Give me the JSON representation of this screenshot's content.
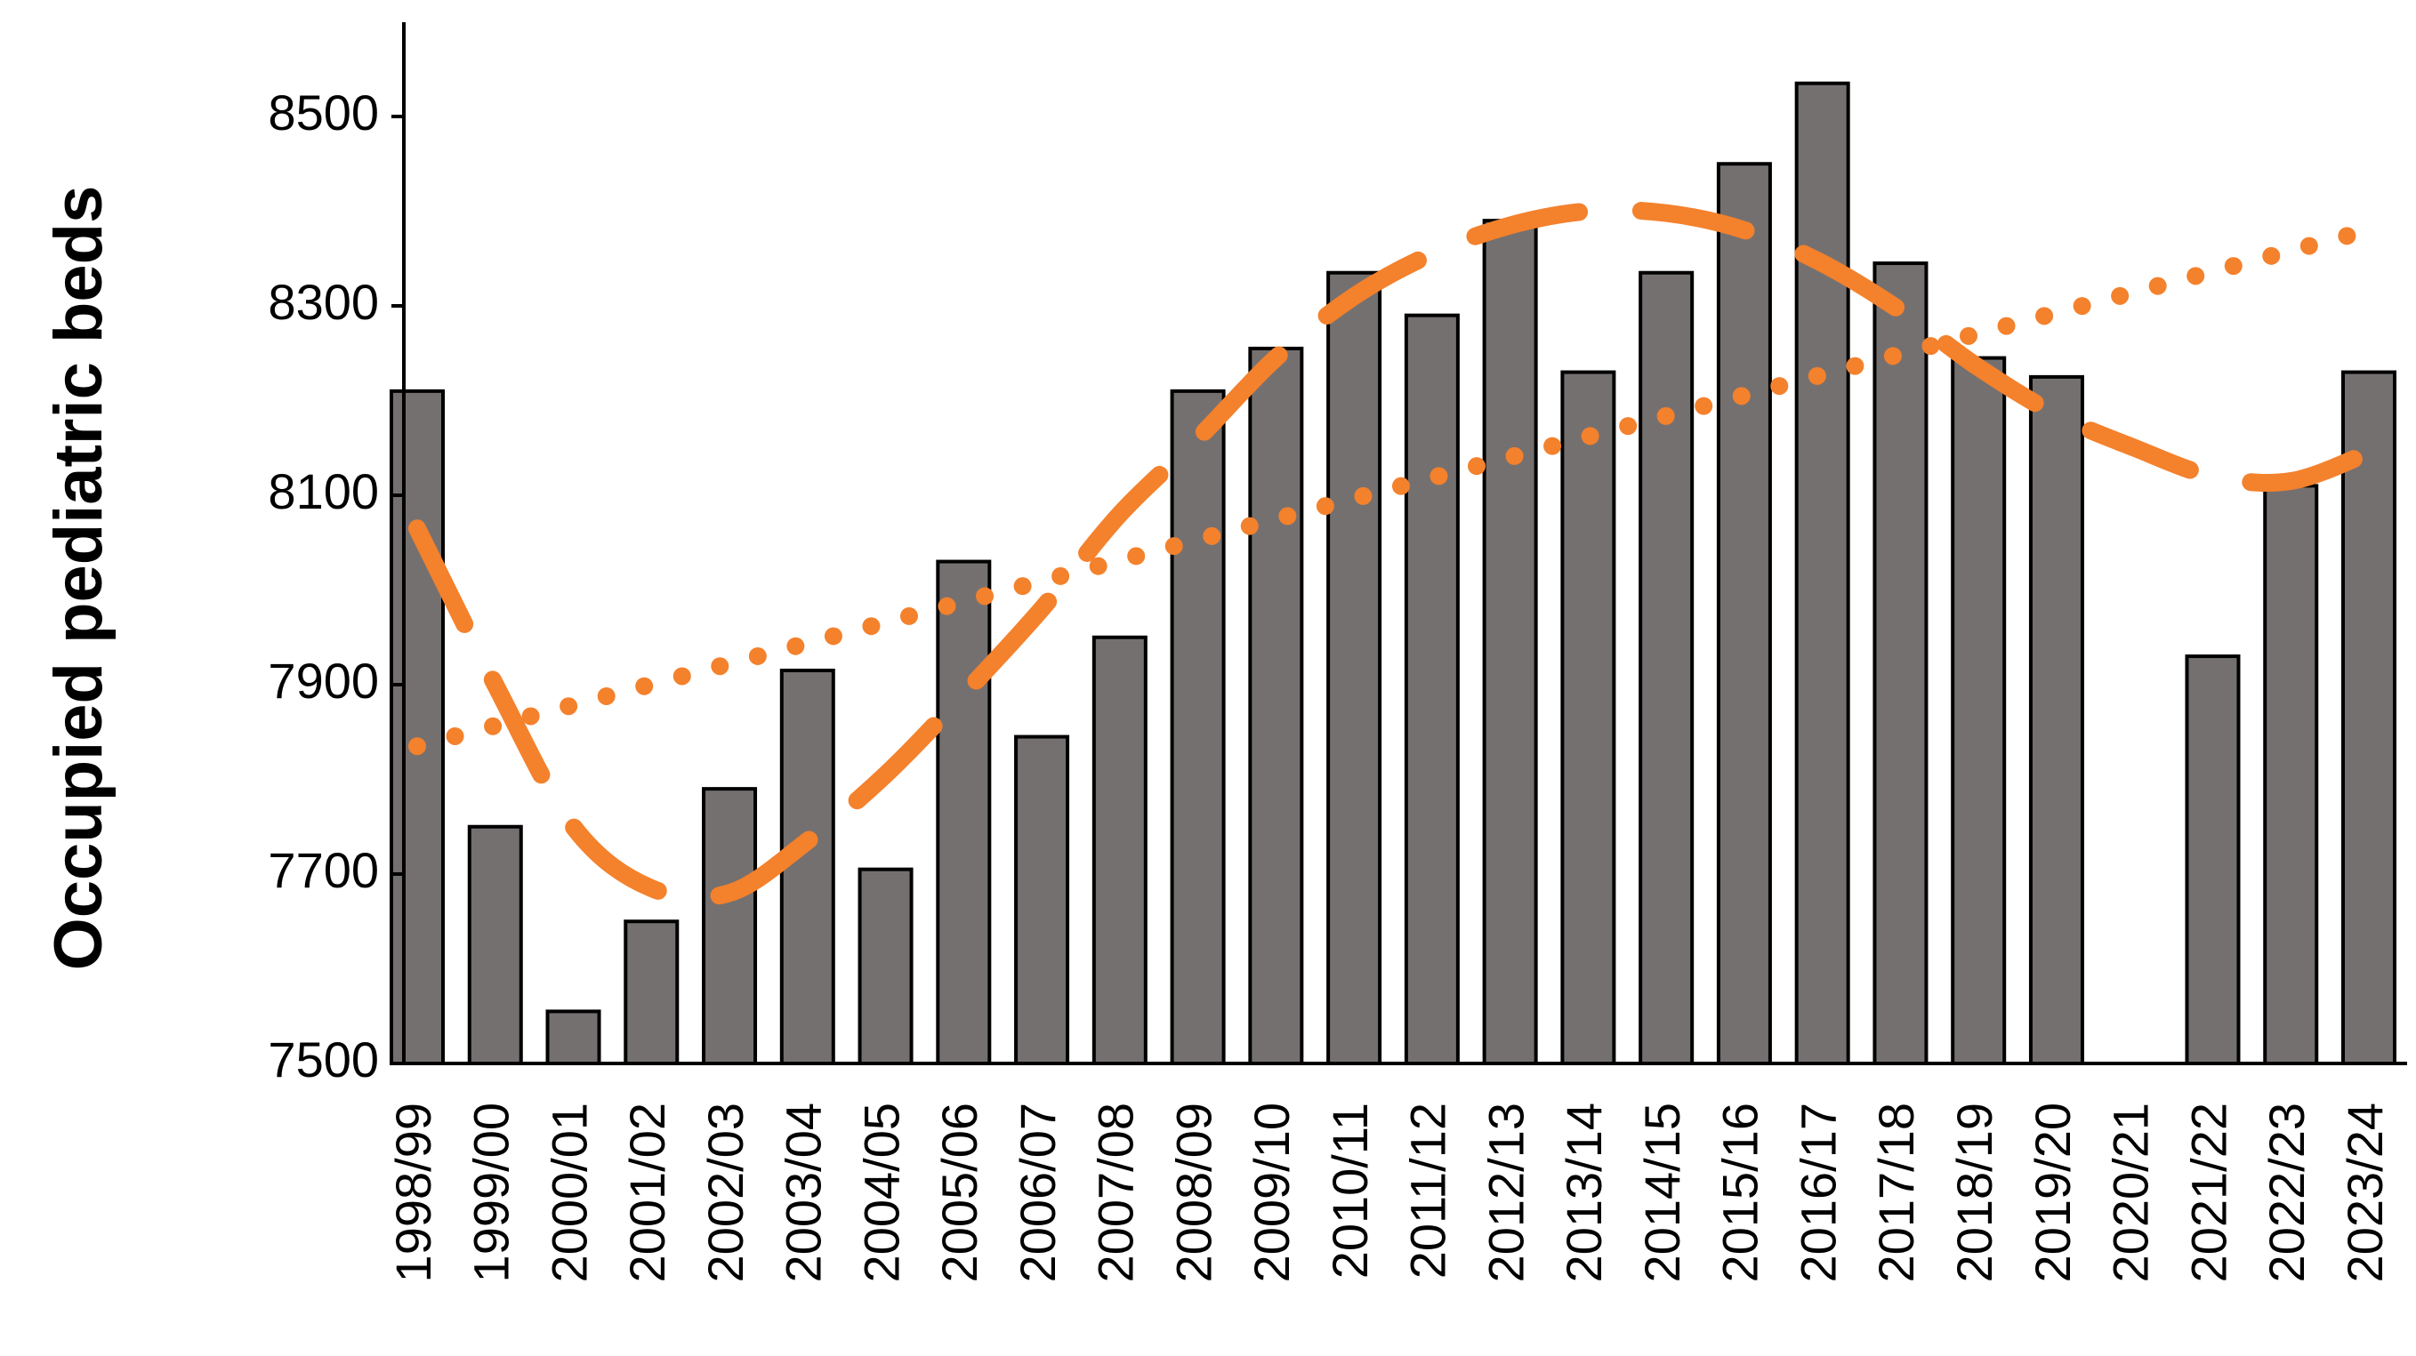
{
  "chart_data": {
    "type": "bar",
    "ylabel": "Occupied pediatric beds",
    "xlabel": "",
    "title": "",
    "ylim": [
      7500,
      8600
    ],
    "yticks": [
      7500,
      7700,
      7900,
      8100,
      8300,
      8500
    ],
    "grid": false,
    "legend": "none",
    "categories": [
      "1998/99",
      "1999/00",
      "2000/01",
      "2001/02",
      "2002/03",
      "2003/04",
      "2004/05",
      "2005/06",
      "2006/07",
      "2007/08",
      "2008/09",
      "2009/10",
      "2010/11",
      "2011/12",
      "2012/13",
      "2013/14",
      "2014/15",
      "2015/16",
      "2016/17",
      "2017/18",
      "2018/19",
      "2019/20",
      "2020/21",
      "2021/22",
      "2022/23",
      "2023/24"
    ],
    "values": [
      8210,
      7750,
      7555,
      7650,
      7790,
      7915,
      7705,
      8030,
      7845,
      7950,
      8210,
      8255,
      8335,
      8290,
      8390,
      8230,
      8335,
      8450,
      8535,
      8345,
      8245,
      8225,
      null,
      7930,
      8110,
      8230
    ],
    "bar_color": "#757070",
    "bar_edge_color": "#000000",
    "trendlines": [
      {
        "kind": "linear",
        "style": "dotted",
        "color": "#f4812c",
        "points": [
          {
            "x": "1998/99",
            "y": 7835
          },
          {
            "x": "2023/24",
            "y": 8380
          }
        ]
      },
      {
        "kind": "moving-average",
        "style": "dashed",
        "color": "#f4812c",
        "points": [
          {
            "x": "1998/99",
            "y": 8065
          },
          {
            "x": "1999/00",
            "y": 7900
          },
          {
            "x": "2000/01",
            "y": 7750
          },
          {
            "x": "2001/02",
            "y": 7685
          },
          {
            "x": "2002/03",
            "y": 7680
          },
          {
            "x": "2003/04",
            "y": 7735
          },
          {
            "x": "2004/05",
            "y": 7805
          },
          {
            "x": "2005/06",
            "y": 7890
          },
          {
            "x": "2006/07",
            "y": 7980
          },
          {
            "x": "2007/08",
            "y": 8080
          },
          {
            "x": "2008/09",
            "y": 8160
          },
          {
            "x": "2009/10",
            "y": 8245
          },
          {
            "x": "2010/11",
            "y": 8310
          },
          {
            "x": "2011/12",
            "y": 8355
          },
          {
            "x": "2012/13",
            "y": 8385
          },
          {
            "x": "2013/14",
            "y": 8400
          },
          {
            "x": "2014/15",
            "y": 8398
          },
          {
            "x": "2015/16",
            "y": 8380
          },
          {
            "x": "2016/17",
            "y": 8345
          },
          {
            "x": "2017/18",
            "y": 8295
          },
          {
            "x": "2018/19",
            "y": 8235
          },
          {
            "x": "2019/20",
            "y": 8185
          },
          {
            "x": "2020/21",
            "y": 8150
          },
          {
            "x": "2021/22",
            "y": 8120
          },
          {
            "x": "2022/23",
            "y": 8115
          },
          {
            "x": "2023/24",
            "y": 8145
          }
        ]
      }
    ]
  }
}
